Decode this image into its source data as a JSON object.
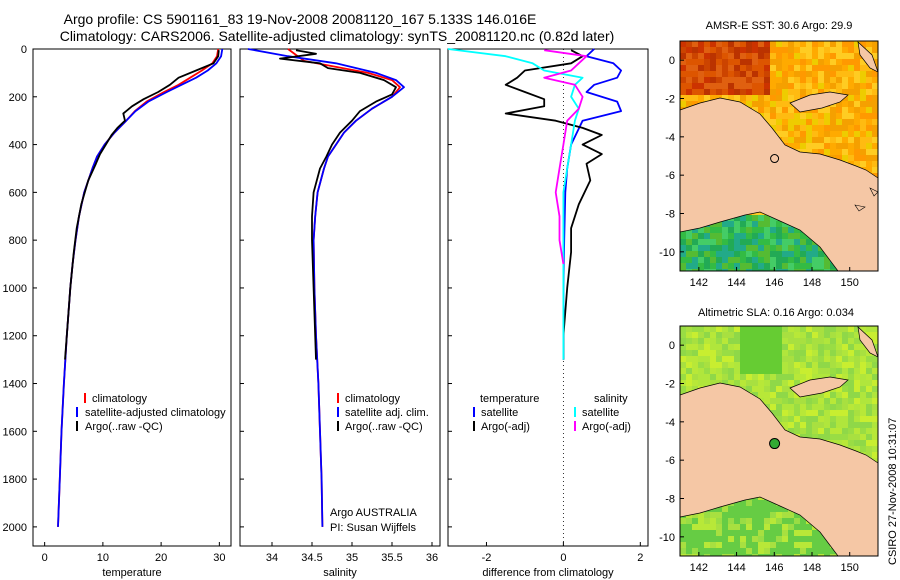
{
  "header": {
    "line1": "Argo profile: CS 5901161_83 19-Nov-2008 20081120_167 5.133S 146.016E",
    "line2": "Climatology: CARS2006. Satellite-adjusted climatology: synTS_20081120.nc (0.82d later)"
  },
  "side_label": "CSIRO 27-Nov-2008 10:31:07",
  "credit": {
    "line1": "Argo AUSTRALIA",
    "line2": "PI: Susan Wijffels"
  },
  "colors": {
    "climatology": "#ff0000",
    "satellite": "#0000ff",
    "argo": "#000000",
    "sal_satellite": "#00ffff",
    "sal_argo": "#ff00ff"
  },
  "chart_data": [
    {
      "type": "line",
      "id": "temperature",
      "xlabel": "temperature",
      "ylabel": "",
      "xlim": [
        -2,
        32
      ],
      "ylim": [
        2080,
        0
      ],
      "xticks": [
        0,
        10,
        20,
        30
      ],
      "yticks": [
        0,
        200,
        400,
        600,
        800,
        1000,
        1200,
        1400,
        1600,
        1800,
        2000
      ],
      "legend": [
        "climatology",
        "satellite-adjusted climatology",
        "Argo(..raw -QC)"
      ],
      "series": [
        {
          "name": "climatology",
          "depth": [
            0,
            30,
            60,
            90,
            120,
            150,
            180,
            220,
            260,
            300,
            350,
            400,
            450,
            500,
            600,
            700,
            800,
            900,
            1000,
            1200,
            1400,
            1600,
            1800,
            2000
          ],
          "values": [
            29.8,
            29.6,
            28.8,
            27.0,
            25.0,
            23.0,
            20.5,
            17.5,
            15.5,
            14.0,
            12.0,
            10.3,
            9.0,
            8.2,
            6.8,
            5.9,
            5.3,
            4.8,
            4.4,
            3.8,
            3.3,
            2.9,
            2.6,
            2.3
          ]
        },
        {
          "name": "satellite",
          "depth": [
            0,
            30,
            60,
            90,
            120,
            150,
            180,
            220,
            260,
            300,
            350,
            400,
            450,
            500,
            600,
            700,
            800,
            900,
            1000,
            1200,
            1400,
            1600,
            1800,
            2000
          ],
          "values": [
            30.5,
            30.3,
            29.5,
            28.0,
            26.0,
            23.5,
            21.0,
            17.8,
            15.6,
            14.0,
            12.0,
            10.3,
            9.0,
            8.2,
            6.8,
            5.9,
            5.3,
            4.8,
            4.4,
            3.8,
            3.3,
            2.9,
            2.6,
            2.3
          ]
        },
        {
          "name": "Argo",
          "depth": [
            5,
            30,
            60,
            90,
            120,
            150,
            180,
            210,
            240,
            270,
            300,
            330,
            360,
            400,
            440,
            480,
            550,
            650,
            750,
            850,
            1000,
            1200,
            1300
          ],
          "values": [
            29.9,
            29.8,
            29.0,
            26.0,
            23.0,
            21.5,
            19.5,
            17.0,
            15.0,
            13.5,
            13.8,
            12.5,
            11.5,
            10.5,
            9.5,
            8.8,
            7.5,
            6.3,
            5.5,
            5.0,
            4.4,
            3.8,
            3.5
          ]
        }
      ]
    },
    {
      "type": "line",
      "id": "salinity",
      "xlabel": "salinity",
      "ylabel": "",
      "xlim": [
        33.6,
        36.1
      ],
      "ylim": [
        2080,
        0
      ],
      "xticks": [
        34,
        34.5,
        35,
        35.5,
        36
      ],
      "legend": [
        "climatology",
        "satellite adj. clim.",
        "Argo(..raw -QC)"
      ],
      "series": [
        {
          "name": "climatology",
          "depth": [
            0,
            50,
            100,
            130,
            160,
            200,
            250,
            300,
            350,
            400,
            450,
            500,
            600,
            700,
            800,
            1000,
            1200,
            1400,
            1600,
            1800,
            2000
          ],
          "values": [
            34.2,
            34.4,
            35.2,
            35.5,
            35.6,
            35.5,
            35.25,
            35.05,
            34.9,
            34.8,
            34.7,
            34.65,
            34.57,
            34.54,
            34.52,
            34.53,
            34.55,
            34.58,
            34.6,
            34.62,
            34.63
          ]
        },
        {
          "name": "satellite",
          "depth": [
            0,
            30,
            60,
            100,
            130,
            160,
            200,
            250,
            300,
            350,
            400,
            450,
            500,
            600,
            700,
            800,
            1000,
            1200,
            1400,
            1600,
            1800,
            2000
          ],
          "values": [
            33.7,
            34.2,
            34.8,
            35.3,
            35.55,
            35.65,
            35.5,
            35.25,
            35.05,
            34.9,
            34.8,
            34.7,
            34.65,
            34.57,
            34.54,
            34.52,
            34.53,
            34.55,
            34.58,
            34.6,
            34.62,
            34.63
          ]
        },
        {
          "name": "Argo",
          "depth": [
            5,
            20,
            40,
            60,
            80,
            100,
            130,
            160,
            190,
            220,
            260,
            300,
            350,
            400,
            450,
            500,
            600,
            700,
            800,
            900,
            1000,
            1200,
            1300
          ],
          "values": [
            34.3,
            34.55,
            34.1,
            34.6,
            34.7,
            35.1,
            35.4,
            35.55,
            35.5,
            35.3,
            35.1,
            35.0,
            34.85,
            34.75,
            34.68,
            34.6,
            34.52,
            34.5,
            34.5,
            34.51,
            34.52,
            34.54,
            34.55
          ]
        }
      ]
    },
    {
      "type": "line",
      "id": "difference",
      "xlabel": "difference from climatology",
      "ylabel": "",
      "xlim": [
        -3,
        2.2
      ],
      "ylim": [
        2080,
        0
      ],
      "xticks": [
        -2,
        0,
        2
      ],
      "legend_temperature_title": "temperature",
      "legend_salinity_title": "salinity",
      "legend_temperature": [
        "satellite",
        "Argo(-adj)"
      ],
      "legend_salinity": [
        "satellite",
        "Argo(-adj)"
      ],
      "series": [
        {
          "name": "temp satellite",
          "depth": [
            0,
            30,
            60,
            90,
            120,
            150,
            180,
            220,
            260,
            300,
            400,
            500,
            600,
            800,
            1000,
            1200,
            1300
          ],
          "values": [
            0.8,
            0.6,
            1.3,
            1.5,
            1.4,
            0.8,
            0.6,
            1.4,
            1.5,
            0.5,
            0.2,
            0.1,
            0.05,
            0.02,
            0.0,
            0.0,
            0.0
          ]
        },
        {
          "name": "temp Argo",
          "depth": [
            5,
            30,
            60,
            90,
            120,
            150,
            180,
            210,
            240,
            270,
            300,
            330,
            360,
            400,
            440,
            480,
            550,
            650,
            750,
            850,
            1000,
            1200,
            1300
          ],
          "values": [
            0.2,
            0.5,
            0.2,
            -1.0,
            -1.2,
            -1.5,
            -1.0,
            -0.5,
            -0.5,
            -1.5,
            -0.2,
            0.5,
            1.0,
            0.5,
            1.0,
            0.6,
            0.7,
            0.4,
            0.2,
            0.2,
            0.1,
            0.0,
            0.0
          ]
        },
        {
          "name": "sal satellite",
          "depth": [
            0,
            30,
            60,
            90,
            120,
            150,
            200,
            250,
            300,
            400,
            500,
            600,
            800,
            1000,
            1200,
            1300
          ],
          "values": [
            -3.0,
            -1.5,
            -0.8,
            -0.5,
            0.5,
            0.3,
            0.2,
            0.4,
            0.3,
            0.2,
            0.1,
            0.0,
            0.0,
            0.0,
            0.0,
            0.0
          ]
        },
        {
          "name": "sal Argo",
          "depth": [
            5,
            30,
            60,
            90,
            120,
            150,
            200,
            250,
            300,
            400,
            500,
            600,
            700,
            800,
            900
          ],
          "values": [
            -0.5,
            0.6,
            0.4,
            0.2,
            -0.5,
            0.3,
            0.5,
            0.4,
            0.1,
            0.0,
            -0.1,
            -0.2,
            -0.1,
            -0.1,
            0.0
          ]
        }
      ]
    },
    {
      "type": "heatmap",
      "id": "sst_map",
      "title": "AMSR-E SST: 30.6 Argo: 29.9",
      "xlim": [
        141,
        151.5
      ],
      "ylim": [
        -11,
        1
      ],
      "xticks": [
        142,
        144,
        146,
        148,
        150
      ],
      "yticks": [
        0,
        -2,
        -4,
        -6,
        -8,
        -10
      ],
      "argo_lon": 146.016,
      "argo_lat": -5.133
    },
    {
      "type": "heatmap",
      "id": "sla_map",
      "title": "Altimetric SLA: 0.16 Argo: 0.034",
      "xlim": [
        141,
        151.5
      ],
      "ylim": [
        -11,
        1
      ],
      "xticks": [
        142,
        144,
        146,
        148,
        150
      ],
      "yticks": [
        0,
        -2,
        -4,
        -6,
        -8,
        -10
      ],
      "argo_lon": 146.016,
      "argo_lat": -5.133
    }
  ]
}
